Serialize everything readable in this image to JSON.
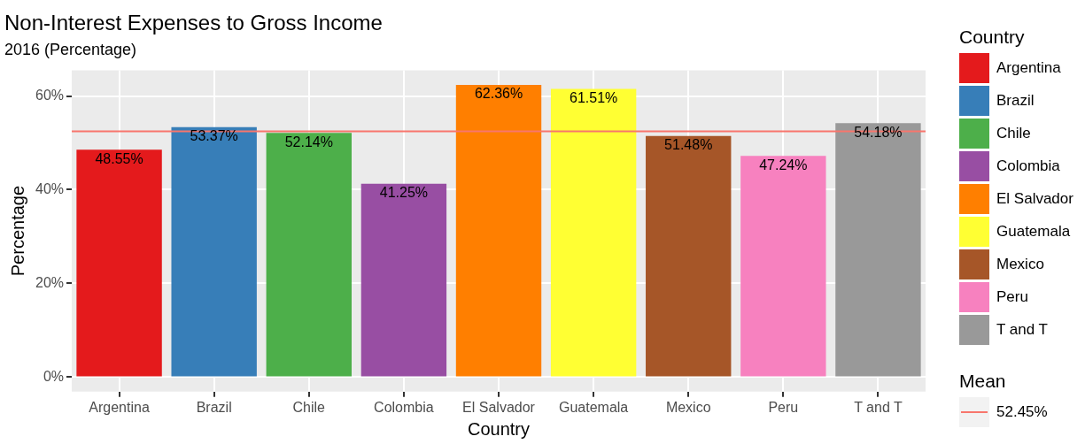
{
  "chart_data": {
    "type": "bar",
    "title": "Non-Interest Expenses to Gross Income",
    "subtitle": "2016 (Percentage)",
    "xlabel": "Country",
    "ylabel": "Percentage",
    "legend_title": "Country",
    "categories": [
      "Argentina",
      "Brazil",
      "Chile",
      "Colombia",
      "El Salvador",
      "Guatemala",
      "Mexico",
      "Peru",
      "T and T"
    ],
    "values": [
      48.55,
      53.37,
      52.14,
      41.25,
      62.36,
      61.51,
      51.48,
      47.24,
      54.18
    ],
    "value_labels": [
      "48.55%",
      "53.37%",
      "52.14%",
      "41.25%",
      "62.36%",
      "61.51%",
      "51.48%",
      "47.24%",
      "54.18%"
    ],
    "colors": [
      "#e41a1c",
      "#377eb8",
      "#4daf4a",
      "#984ea3",
      "#ff7f00",
      "#ffff33",
      "#a65628",
      "#f781bf",
      "#999999"
    ],
    "ylim": [
      -3.1,
      65.5
    ],
    "yticks": [
      {
        "value": 0,
        "label": "0%"
      },
      {
        "value": 20,
        "label": "20%"
      },
      {
        "value": 40,
        "label": "40%"
      },
      {
        "value": 60,
        "label": "60%"
      }
    ],
    "ref_lines": [
      {
        "axis": "y",
        "value": 52.45,
        "label": "52.45%",
        "color": "#f8766d"
      }
    ],
    "annotations": [
      "Mean"
    ],
    "grid": true,
    "legend": "right"
  }
}
